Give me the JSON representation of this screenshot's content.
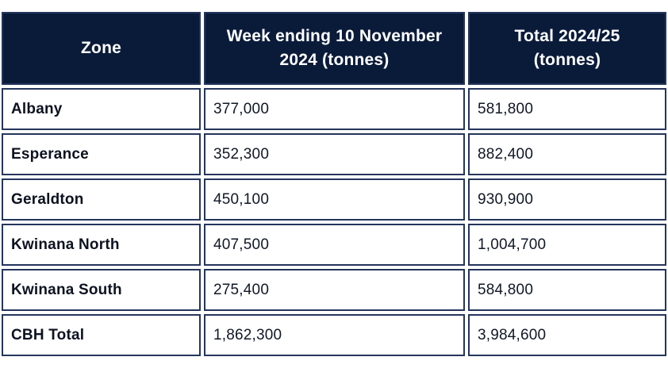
{
  "table": {
    "columns": {
      "zone": "Zone",
      "week": "Week ending 10 November 2024 (tonnes)",
      "total": "Total 2024/25 (tonnes)"
    },
    "rows": [
      {
        "zone": "Albany",
        "week": "377,000",
        "total": "581,800"
      },
      {
        "zone": "Esperance",
        "week": "352,300",
        "total": "882,400"
      },
      {
        "zone": "Geraldton",
        "week": "450,100",
        "total": "930,900"
      },
      {
        "zone": "Kwinana North",
        "week": "407,500",
        "total": "1,004,700"
      },
      {
        "zone": "Kwinana South",
        "week": "275,400",
        "total": "584,800"
      },
      {
        "zone": "CBH Total",
        "week": "1,862,300",
        "total": "3,984,600"
      }
    ],
    "colors": {
      "header_bg": "#0a1b3a",
      "header_text": "#ffffff",
      "cell_border": "#25355c",
      "body_text": "#101726"
    }
  }
}
